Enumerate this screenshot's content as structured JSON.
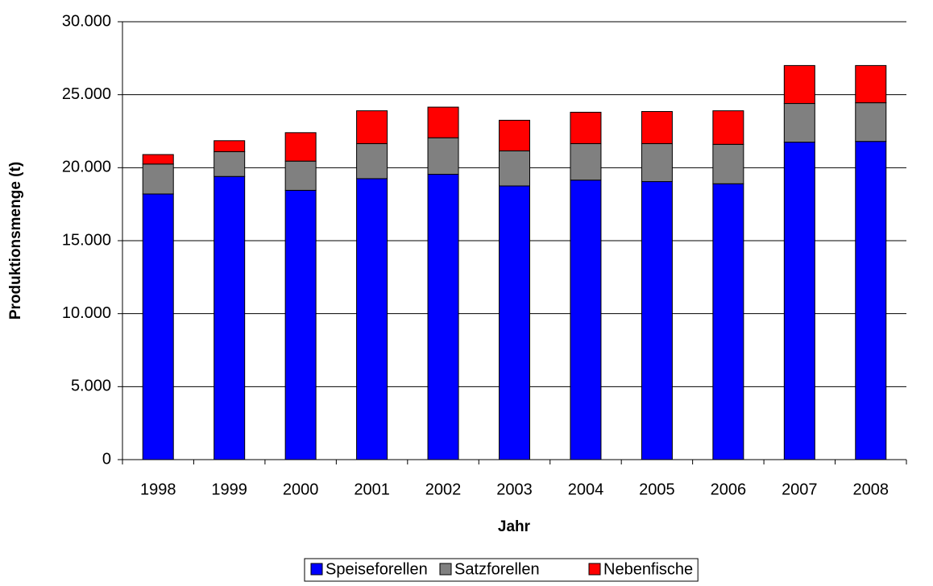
{
  "chart_data": {
    "type": "stacked_bar",
    "x_label": "Jahr",
    "y_label": "Produktionsmenge (t)",
    "categories": [
      "1998",
      "1999",
      "2000",
      "2001",
      "2002",
      "2003",
      "2004",
      "2005",
      "2006",
      "2007",
      "2008"
    ],
    "series": [
      {
        "name": "Speiseforellen",
        "color": "#0000ff",
        "values": [
          18200,
          19400,
          18450,
          19250,
          19550,
          18750,
          19150,
          19050,
          18900,
          21750,
          21800
        ]
      },
      {
        "name": "Satzforellen",
        "color": "#808080",
        "values": [
          2050,
          1700,
          2000,
          2400,
          2500,
          2400,
          2500,
          2600,
          2700,
          2650,
          2650
        ]
      },
      {
        "name": "Nebenfische",
        "color": "#ff0000",
        "values": [
          650,
          750,
          1950,
          2250,
          2100,
          2100,
          2150,
          2200,
          2300,
          2600,
          2550
        ]
      }
    ],
    "ylim": [
      0,
      30000
    ],
    "yticks": [
      0,
      {
        "value": 5000,
        "label": "5.000"
      },
      {
        "value": 10000,
        "label": "10.000"
      },
      {
        "value": 15000,
        "label": "15.000"
      },
      {
        "value": 20000,
        "label": "20.000"
      },
      {
        "value": 25000,
        "label": "25.000"
      },
      {
        "value": 30000,
        "label": "30.000"
      }
    ],
    "grid": true
  }
}
